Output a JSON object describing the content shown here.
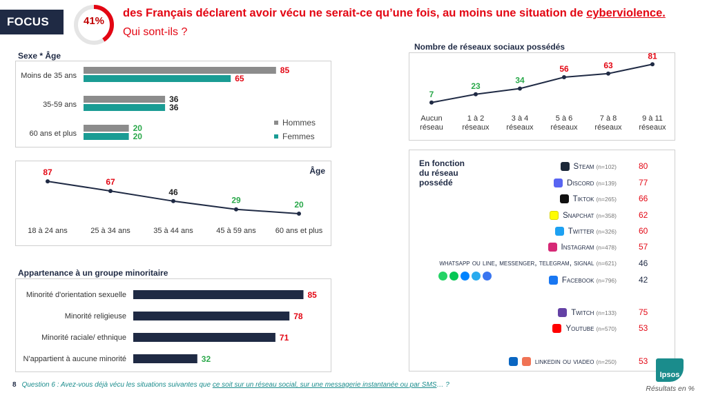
{
  "header": {
    "focus_label": "FOCUS",
    "percent_label": "41%",
    "percent_value": 41,
    "headline_main": "des Français déclarent avoir vécu ne serait-ce qu’une fois, au moins une situation de ",
    "headline_underlined": "cyberviolence.",
    "subheadline": "Qui sont-ils ?"
  },
  "colors": {
    "red": "#e30613",
    "navy": "#1f2a44",
    "teal": "#1a9c94",
    "grey": "#8c8c8c",
    "green": "#2aa84a",
    "black": "#222222"
  },
  "chart_data": [
    {
      "id": "sexe_age",
      "type": "bar",
      "title": "Sexe * Âge",
      "categories": [
        "Moins de 35 ans",
        "35-59 ans",
        "60 ans et plus"
      ],
      "series": [
        {
          "name": "Hommes",
          "values": [
            85,
            36,
            20
          ],
          "color": "#8c8c8c"
        },
        {
          "name": "Femmes",
          "values": [
            65,
            36,
            20
          ],
          "color": "#1a9c94"
        }
      ],
      "label_colors": [
        [
          "#e30613",
          "#e30613"
        ],
        [
          "#222222",
          "#222222"
        ],
        [
          "#2aa84a",
          "#2aa84a"
        ]
      ],
      "xlim": [
        0,
        100
      ]
    },
    {
      "id": "age",
      "type": "line",
      "title": "Âge",
      "categories": [
        "18 à 24 ans",
        "25 à 34 ans",
        "35 à 44 ans",
        "45 à 59 ans",
        "60 ans et plus"
      ],
      "values": [
        87,
        67,
        46,
        29,
        20
      ],
      "label_colors": [
        "#e30613",
        "#e30613",
        "#222222",
        "#2aa84a",
        "#2aa84a"
      ],
      "ylim": [
        0,
        100
      ]
    },
    {
      "id": "minoritaire",
      "type": "bar",
      "title": "Appartenance à un groupe minoritaire",
      "categories": [
        "Minorité d'orientation sexuelle",
        "Minorité religieuse",
        "Minorité raciale/ ethnique",
        "N'appartient à aucune minorité"
      ],
      "values": [
        85,
        78,
        71,
        32
      ],
      "label_colors": [
        "#e30613",
        "#e30613",
        "#e30613",
        "#2aa84a"
      ],
      "xlim": [
        0,
        100
      ]
    },
    {
      "id": "reseaux",
      "type": "line",
      "title": "Nombre de réseaux sociaux possédés",
      "categories": [
        [
          "Aucun",
          "réseau"
        ],
        [
          "1 à 2",
          "réseaux"
        ],
        [
          "3 à 4",
          "réseaux"
        ],
        [
          "5 à 6",
          "réseaux"
        ],
        [
          "7 à 8",
          "réseaux"
        ],
        [
          "9 à 11",
          "réseaux"
        ]
      ],
      "values": [
        7,
        23,
        34,
        56,
        63,
        81
      ],
      "label_colors": [
        "#2aa84a",
        "#2aa84a",
        "#2aa84a",
        "#e30613",
        "#e30613",
        "#e30613"
      ],
      "ylim": [
        0,
        100
      ]
    }
  ],
  "platforms": {
    "title_lines": [
      "En fonction",
      "du réseau",
      "possédé"
    ],
    "items": [
      {
        "name": "Steam",
        "n": "(n=102)",
        "value": "80",
        "icon": "steam-icon",
        "icon_color": "#1b2838",
        "value_color": "#e30613"
      },
      {
        "name": "Discord",
        "n": "(n=139)",
        "value": "77",
        "icon": "discord-icon",
        "icon_color": "#5865f2",
        "value_color": "#e30613"
      },
      {
        "name": "Tiktok",
        "n": "(n=265)",
        "value": "66",
        "icon": "tiktok-icon",
        "icon_color": "#111111",
        "value_color": "#e30613"
      },
      {
        "name": "Snapchat",
        "n": "(n=358)",
        "value": "62",
        "icon": "snapchat-icon",
        "icon_color": "#fffc00",
        "value_color": "#e30613"
      },
      {
        "name": "Twitter",
        "n": "(n=326)",
        "value": "60",
        "icon": "twitter-icon",
        "icon_color": "#1da1f2",
        "value_color": "#e30613"
      },
      {
        "name": "Instagram",
        "n": "(n=478)",
        "value": "57",
        "icon": "instagram-icon",
        "icon_color": "#d62976",
        "value_color": "#e30613"
      },
      {
        "name": "whatsapp ou line, messenger, telegram, signal",
        "n": "(n=621)",
        "value": "46",
        "icon": "",
        "icon_color": "",
        "value_color": "#1f2a44"
      },
      {
        "name": "Facebook",
        "n": "(n=796)",
        "value": "42",
        "icon": "facebook-icon",
        "icon_color": "#1877f2",
        "value_color": "#1f2a44"
      },
      {
        "name": "Twitch",
        "n": "(n=133)",
        "value": "75",
        "icon": "twitch-icon",
        "icon_color": "#6441a5",
        "value_color": "#e30613"
      },
      {
        "name": "Youtube",
        "n": "(n=570)",
        "value": "53",
        "icon": "youtube-icon",
        "icon_color": "#ff0000",
        "value_color": "#e30613"
      },
      {
        "name": "linkedin ou viadeo",
        "n": "(n=250)",
        "value": "53",
        "icon": "linkedin-icon",
        "icon_color": "#0a66c2",
        "value_color": "#e30613"
      }
    ],
    "messaging_icons": [
      {
        "icon": "whatsapp-icon",
        "color": "#25d366"
      },
      {
        "icon": "line-icon",
        "color": "#06c755"
      },
      {
        "icon": "messenger-icon",
        "color": "#0084ff"
      },
      {
        "icon": "telegram-icon",
        "color": "#2aabee"
      },
      {
        "icon": "signal-icon",
        "color": "#3a76f0"
      }
    ],
    "viadeo_icon": {
      "icon": "viadeo-icon",
      "color": "#f07355"
    }
  },
  "footer": {
    "page_number": "8",
    "question_prefix": "Question 6 : Avez-vous déjà vécu les situations suivantes que ",
    "question_underlined": "ce soit sur un réseau social, sur une messagerie instantanée ou par SMS",
    "question_suffix": "… ?",
    "results_note": "Résultats en %",
    "logo_text": "Ipsos"
  }
}
